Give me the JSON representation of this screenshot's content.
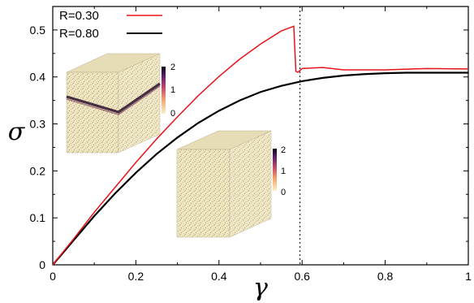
{
  "chart_data": {
    "type": "line",
    "xlabel": "γ",
    "ylabel": "σ",
    "xlim": [
      0,
      1
    ],
    "ylim": [
      0,
      0.55
    ],
    "x_ticks": [
      "0",
      "0.2",
      "0.4",
      "0.6",
      "0.8",
      "1"
    ],
    "y_ticks": [
      "0",
      "0.1",
      "0.2",
      "0.3",
      "0.4",
      "0.5"
    ],
    "vline_x": 0.595,
    "legend_position": "top-left",
    "series": [
      {
        "name": "R=0.30",
        "color": "#e8141b",
        "x": [
          0,
          0.05,
          0.1,
          0.15,
          0.2,
          0.25,
          0.3,
          0.35,
          0.4,
          0.45,
          0.5,
          0.55,
          0.58,
          0.585,
          0.59,
          0.6,
          0.65,
          0.7,
          0.8,
          0.9,
          1.0
        ],
        "y": [
          0,
          0.055,
          0.112,
          0.165,
          0.218,
          0.268,
          0.315,
          0.36,
          0.401,
          0.438,
          0.47,
          0.498,
          0.508,
          0.412,
          0.41,
          0.418,
          0.42,
          0.415,
          0.415,
          0.418,
          0.417
        ]
      },
      {
        "name": "R=0.80",
        "color": "#000000",
        "x": [
          0,
          0.05,
          0.1,
          0.15,
          0.2,
          0.25,
          0.3,
          0.35,
          0.4,
          0.45,
          0.5,
          0.55,
          0.6,
          0.65,
          0.7,
          0.75,
          0.8,
          0.85,
          0.9,
          0.95,
          1.0
        ],
        "y": [
          0,
          0.052,
          0.104,
          0.152,
          0.196,
          0.236,
          0.271,
          0.302,
          0.328,
          0.35,
          0.368,
          0.381,
          0.391,
          0.398,
          0.403,
          0.406,
          0.408,
          0.409,
          0.409,
          0.409,
          0.409
        ]
      }
    ],
    "insets": [
      {
        "colorbar_ticks": [
          "2",
          "1",
          "0"
        ],
        "shear_band": true
      },
      {
        "colorbar_ticks": [
          "2",
          "1",
          "0"
        ],
        "shear_band": false
      }
    ]
  }
}
